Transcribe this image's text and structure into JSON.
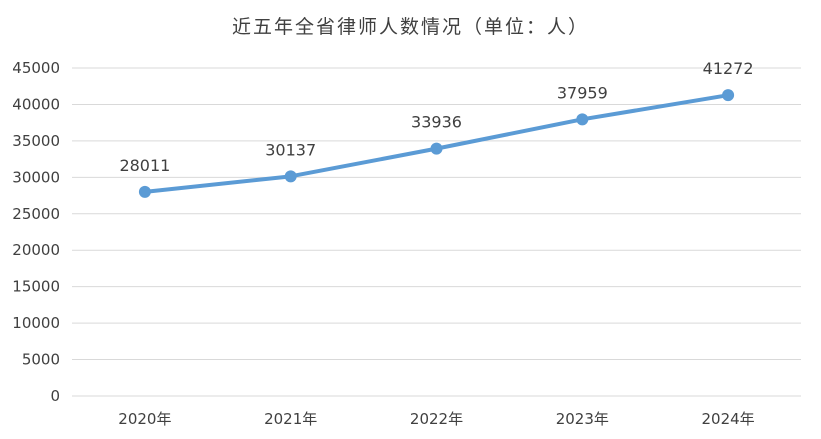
{
  "chart_data": {
    "type": "line",
    "title": "近五年全省律师人数情况（单位：人）",
    "categories": [
      "2020年",
      "2021年",
      "2022年",
      "2023年",
      "2024年"
    ],
    "series": [
      {
        "values": [
          28011,
          30137,
          33936,
          37959,
          41272
        ],
        "color": "#5b9bd5"
      }
    ],
    "data_labels": [
      "28011",
      "30137",
      "33936",
      "37959",
      "41272"
    ],
    "ylim": [
      0,
      45000
    ],
    "y_ticks": [
      0,
      5000,
      10000,
      15000,
      20000,
      25000,
      30000,
      35000,
      40000,
      45000
    ],
    "y_tick_labels": [
      "0",
      "5000",
      "10000",
      "15000",
      "20000",
      "25000",
      "30000",
      "35000",
      "40000",
      "45000"
    ],
    "grid": true,
    "legend": "none",
    "xlabel": "",
    "ylabel": ""
  }
}
